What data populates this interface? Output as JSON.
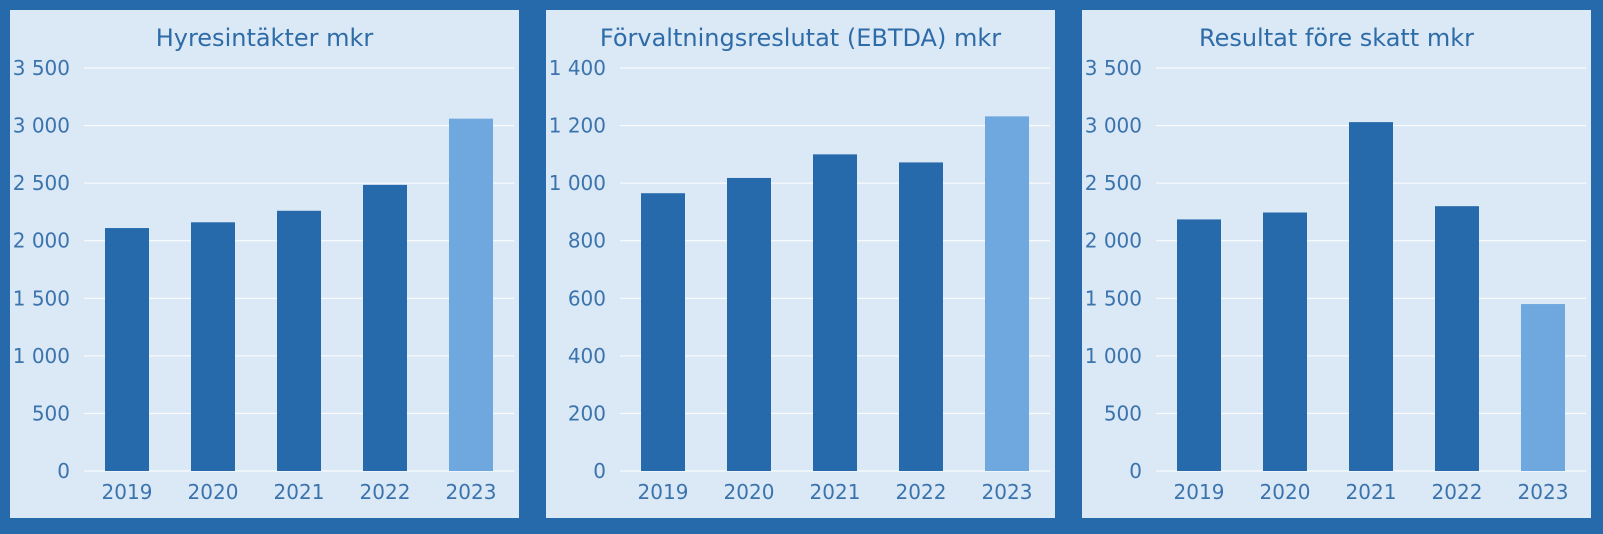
{
  "chart_data": [
    {
      "type": "bar",
      "title": "Hyresintäkter mkr",
      "categories": [
        "2019",
        "2020",
        "2021",
        "2022",
        "2023"
      ],
      "values": [
        2110,
        2160,
        2260,
        2485,
        3060
      ],
      "ylim": [
        0,
        3500
      ],
      "yticks": [
        0,
        500,
        1000,
        1500,
        2000,
        2500,
        3000,
        3500
      ],
      "ytick_labels": [
        "0",
        "500",
        "1 000",
        "1 500",
        "2 000",
        "2 500",
        "3 000",
        "3 500"
      ],
      "grid": true,
      "colors": [
        "#276aab",
        "#276aab",
        "#276aab",
        "#276aab",
        "#6fa8de"
      ]
    },
    {
      "type": "bar",
      "title": "Förvaltningsreslutat (EBTDA) mkr",
      "categories": [
        "2019",
        "2020",
        "2021",
        "2022",
        "2023"
      ],
      "values": [
        965,
        1018,
        1100,
        1072,
        1232
      ],
      "ylim": [
        0,
        1400
      ],
      "yticks": [
        0,
        200,
        400,
        600,
        800,
        1000,
        1200,
        1400
      ],
      "ytick_labels": [
        "0",
        "200",
        "400",
        "600",
        "800",
        "1 000",
        "1 200",
        "1 400"
      ],
      "grid": true,
      "colors": [
        "#276aab",
        "#276aab",
        "#276aab",
        "#276aab",
        "#6fa8de"
      ]
    },
    {
      "type": "bar",
      "title": "Resultat före skatt mkr",
      "categories": [
        "2019",
        "2020",
        "2021",
        "2022",
        "2023"
      ],
      "values": [
        2185,
        2245,
        3030,
        2300,
        1450
      ],
      "ylim": [
        0,
        3500
      ],
      "yticks": [
        0,
        500,
        1000,
        1500,
        2000,
        2500,
        3000,
        3500
      ],
      "ytick_labels": [
        "0",
        "500",
        "1 000",
        "1 500",
        "2 000",
        "2 500",
        "3 000",
        "3 500"
      ],
      "grid": true,
      "colors": [
        "#276aab",
        "#276aab",
        "#276aab",
        "#276aab",
        "#6fa8de"
      ]
    }
  ]
}
